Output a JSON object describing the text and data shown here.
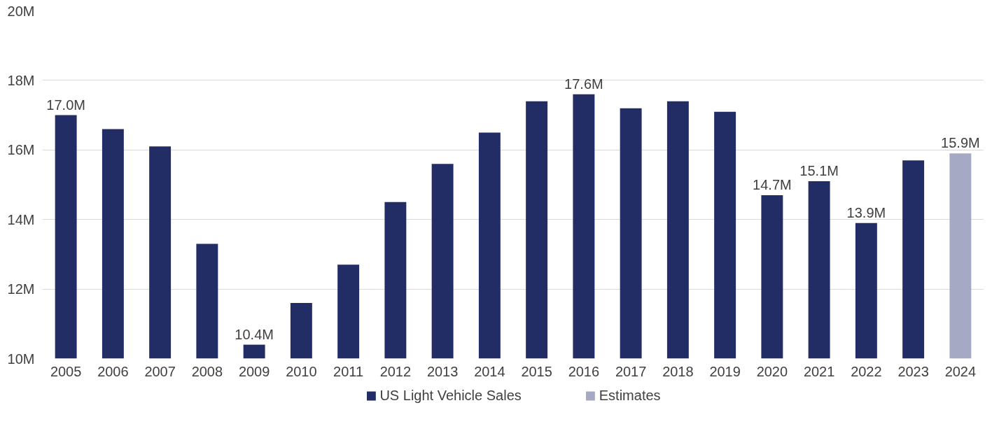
{
  "chart_data": {
    "type": "bar",
    "categories": [
      "2005",
      "2006",
      "2007",
      "2008",
      "2009",
      "2010",
      "2011",
      "2012",
      "2013",
      "2014",
      "2015",
      "2016",
      "2017",
      "2018",
      "2019",
      "2020",
      "2021",
      "2022",
      "2023",
      "2024"
    ],
    "series": [
      {
        "name": "US Light Vehicle Sales",
        "color": "#222d66",
        "values": [
          17.0,
          16.6,
          16.1,
          13.3,
          10.4,
          11.6,
          12.7,
          14.5,
          15.6,
          16.5,
          17.4,
          17.6,
          17.2,
          17.4,
          17.1,
          14.7,
          15.1,
          13.9,
          15.7,
          null
        ],
        "value_labels": [
          "17.0M",
          null,
          null,
          null,
          "10.4M",
          null,
          null,
          null,
          null,
          null,
          null,
          "17.6M",
          null,
          null,
          null,
          "14.7M",
          "15.1M",
          "13.9M",
          null,
          null
        ]
      },
      {
        "name": "Estimates",
        "color": "#a5a9c4",
        "values": [
          null,
          null,
          null,
          null,
          null,
          null,
          null,
          null,
          null,
          null,
          null,
          null,
          null,
          null,
          null,
          null,
          null,
          null,
          null,
          15.9
        ],
        "value_labels": [
          null,
          null,
          null,
          null,
          null,
          null,
          null,
          null,
          null,
          null,
          null,
          null,
          null,
          null,
          null,
          null,
          null,
          null,
          null,
          "15.9M"
        ]
      }
    ],
    "ylim": [
      10,
      20
    ],
    "yticks": [
      {
        "value": 10,
        "label": "10M"
      },
      {
        "value": 12,
        "label": "12M"
      },
      {
        "value": 14,
        "label": "14M"
      },
      {
        "value": 16,
        "label": "16M"
      },
      {
        "value": 18,
        "label": "18M"
      },
      {
        "value": 20,
        "label": "20M"
      }
    ],
    "grid": "y",
    "legend": "bottom"
  }
}
